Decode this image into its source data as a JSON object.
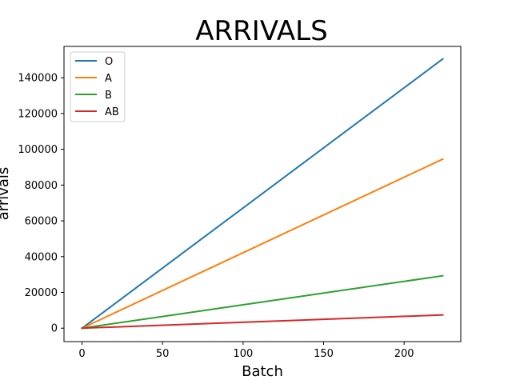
{
  "chart_data": {
    "type": "line",
    "title": "ARRIVALS",
    "xlabel": "Batch",
    "ylabel": "arrivals",
    "xlim": [
      -11.2,
      235.2
    ],
    "ylim": [
      -7500,
      157500
    ],
    "xticks": [
      0,
      50,
      100,
      150,
      200
    ],
    "yticks": [
      0,
      20000,
      40000,
      60000,
      80000,
      100000,
      120000,
      140000
    ],
    "grid": false,
    "legend_position": "top-left",
    "x": [
      0,
      224
    ],
    "series": [
      {
        "name": "O",
        "color": "#1f77b4",
        "values": [
          0,
          150500
        ]
      },
      {
        "name": "A",
        "color": "#ff7f0e",
        "values": [
          0,
          94500
        ]
      },
      {
        "name": "B",
        "color": "#2ca02c",
        "values": [
          0,
          29300
        ]
      },
      {
        "name": "AB",
        "color": "#d62728",
        "values": [
          0,
          7400
        ]
      }
    ]
  }
}
